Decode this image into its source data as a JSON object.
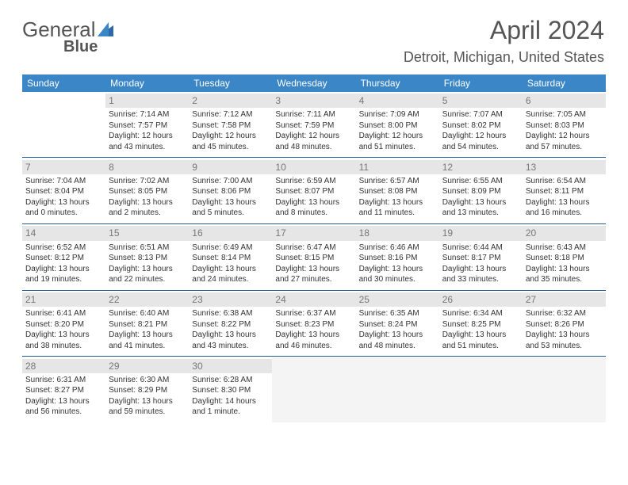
{
  "logo": {
    "text1": "General",
    "text2": "Blue"
  },
  "title": "April 2024",
  "location": "Detroit, Michigan, United States",
  "colors": {
    "header_bg": "#3b86c6",
    "header_text": "#ffffff",
    "daynum_bg": "#e6e6e6",
    "daynum_text": "#777777",
    "separator": "#1f5d94",
    "body_text": "#333333",
    "title_text": "#555555",
    "empty_after_bg": "#f4f4f4"
  },
  "day_headers": [
    "Sunday",
    "Monday",
    "Tuesday",
    "Wednesday",
    "Thursday",
    "Friday",
    "Saturday"
  ],
  "weeks": [
    [
      {
        "blank": true
      },
      {
        "day": "1",
        "sunrise": "Sunrise: 7:14 AM",
        "sunset": "Sunset: 7:57 PM",
        "daylight": "Daylight: 12 hours and 43 minutes."
      },
      {
        "day": "2",
        "sunrise": "Sunrise: 7:12 AM",
        "sunset": "Sunset: 7:58 PM",
        "daylight": "Daylight: 12 hours and 45 minutes."
      },
      {
        "day": "3",
        "sunrise": "Sunrise: 7:11 AM",
        "sunset": "Sunset: 7:59 PM",
        "daylight": "Daylight: 12 hours and 48 minutes."
      },
      {
        "day": "4",
        "sunrise": "Sunrise: 7:09 AM",
        "sunset": "Sunset: 8:00 PM",
        "daylight": "Daylight: 12 hours and 51 minutes."
      },
      {
        "day": "5",
        "sunrise": "Sunrise: 7:07 AM",
        "sunset": "Sunset: 8:02 PM",
        "daylight": "Daylight: 12 hours and 54 minutes."
      },
      {
        "day": "6",
        "sunrise": "Sunrise: 7:05 AM",
        "sunset": "Sunset: 8:03 PM",
        "daylight": "Daylight: 12 hours and 57 minutes."
      }
    ],
    [
      {
        "day": "7",
        "sunrise": "Sunrise: 7:04 AM",
        "sunset": "Sunset: 8:04 PM",
        "daylight": "Daylight: 13 hours and 0 minutes."
      },
      {
        "day": "8",
        "sunrise": "Sunrise: 7:02 AM",
        "sunset": "Sunset: 8:05 PM",
        "daylight": "Daylight: 13 hours and 2 minutes."
      },
      {
        "day": "9",
        "sunrise": "Sunrise: 7:00 AM",
        "sunset": "Sunset: 8:06 PM",
        "daylight": "Daylight: 13 hours and 5 minutes."
      },
      {
        "day": "10",
        "sunrise": "Sunrise: 6:59 AM",
        "sunset": "Sunset: 8:07 PM",
        "daylight": "Daylight: 13 hours and 8 minutes."
      },
      {
        "day": "11",
        "sunrise": "Sunrise: 6:57 AM",
        "sunset": "Sunset: 8:08 PM",
        "daylight": "Daylight: 13 hours and 11 minutes."
      },
      {
        "day": "12",
        "sunrise": "Sunrise: 6:55 AM",
        "sunset": "Sunset: 8:09 PM",
        "daylight": "Daylight: 13 hours and 13 minutes."
      },
      {
        "day": "13",
        "sunrise": "Sunrise: 6:54 AM",
        "sunset": "Sunset: 8:11 PM",
        "daylight": "Daylight: 13 hours and 16 minutes."
      }
    ],
    [
      {
        "day": "14",
        "sunrise": "Sunrise: 6:52 AM",
        "sunset": "Sunset: 8:12 PM",
        "daylight": "Daylight: 13 hours and 19 minutes."
      },
      {
        "day": "15",
        "sunrise": "Sunrise: 6:51 AM",
        "sunset": "Sunset: 8:13 PM",
        "daylight": "Daylight: 13 hours and 22 minutes."
      },
      {
        "day": "16",
        "sunrise": "Sunrise: 6:49 AM",
        "sunset": "Sunset: 8:14 PM",
        "daylight": "Daylight: 13 hours and 24 minutes."
      },
      {
        "day": "17",
        "sunrise": "Sunrise: 6:47 AM",
        "sunset": "Sunset: 8:15 PM",
        "daylight": "Daylight: 13 hours and 27 minutes."
      },
      {
        "day": "18",
        "sunrise": "Sunrise: 6:46 AM",
        "sunset": "Sunset: 8:16 PM",
        "daylight": "Daylight: 13 hours and 30 minutes."
      },
      {
        "day": "19",
        "sunrise": "Sunrise: 6:44 AM",
        "sunset": "Sunset: 8:17 PM",
        "daylight": "Daylight: 13 hours and 33 minutes."
      },
      {
        "day": "20",
        "sunrise": "Sunrise: 6:43 AM",
        "sunset": "Sunset: 8:18 PM",
        "daylight": "Daylight: 13 hours and 35 minutes."
      }
    ],
    [
      {
        "day": "21",
        "sunrise": "Sunrise: 6:41 AM",
        "sunset": "Sunset: 8:20 PM",
        "daylight": "Daylight: 13 hours and 38 minutes."
      },
      {
        "day": "22",
        "sunrise": "Sunrise: 6:40 AM",
        "sunset": "Sunset: 8:21 PM",
        "daylight": "Daylight: 13 hours and 41 minutes."
      },
      {
        "day": "23",
        "sunrise": "Sunrise: 6:38 AM",
        "sunset": "Sunset: 8:22 PM",
        "daylight": "Daylight: 13 hours and 43 minutes."
      },
      {
        "day": "24",
        "sunrise": "Sunrise: 6:37 AM",
        "sunset": "Sunset: 8:23 PM",
        "daylight": "Daylight: 13 hours and 46 minutes."
      },
      {
        "day": "25",
        "sunrise": "Sunrise: 6:35 AM",
        "sunset": "Sunset: 8:24 PM",
        "daylight": "Daylight: 13 hours and 48 minutes."
      },
      {
        "day": "26",
        "sunrise": "Sunrise: 6:34 AM",
        "sunset": "Sunset: 8:25 PM",
        "daylight": "Daylight: 13 hours and 51 minutes."
      },
      {
        "day": "27",
        "sunrise": "Sunrise: 6:32 AM",
        "sunset": "Sunset: 8:26 PM",
        "daylight": "Daylight: 13 hours and 53 minutes."
      }
    ],
    [
      {
        "day": "28",
        "sunrise": "Sunrise: 6:31 AM",
        "sunset": "Sunset: 8:27 PM",
        "daylight": "Daylight: 13 hours and 56 minutes."
      },
      {
        "day": "29",
        "sunrise": "Sunrise: 6:30 AM",
        "sunset": "Sunset: 8:29 PM",
        "daylight": "Daylight: 13 hours and 59 minutes."
      },
      {
        "day": "30",
        "sunrise": "Sunrise: 6:28 AM",
        "sunset": "Sunset: 8:30 PM",
        "daylight": "Daylight: 14 hours and 1 minute."
      },
      {
        "blank": true,
        "after": true
      },
      {
        "blank": true,
        "after": true
      },
      {
        "blank": true,
        "after": true
      },
      {
        "blank": true,
        "after": true
      }
    ]
  ]
}
